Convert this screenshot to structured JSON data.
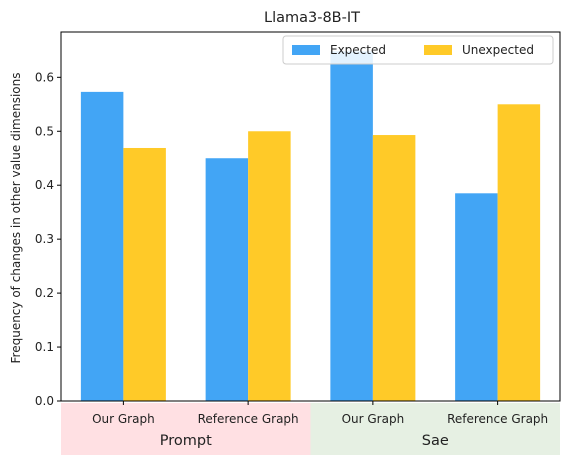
{
  "chart_data": {
    "type": "bar",
    "title": "Llama3-8B-IT",
    "xlabel": "",
    "ylabel": "Frequency of changes in other value dimensions",
    "ylim": [
      0,
      0.684
    ],
    "yticks": [
      0.0,
      0.1,
      0.2,
      0.3,
      0.4,
      0.5,
      0.6
    ],
    "ytick_labels": [
      "0.0",
      "0.1",
      "0.2",
      "0.3",
      "0.4",
      "0.5",
      "0.6"
    ],
    "categories": [
      "Our Graph",
      "Reference Graph",
      "Our Graph",
      "Reference Graph"
    ],
    "groups": [
      {
        "label": "Prompt",
        "categories": [
          0,
          1
        ],
        "color": "#ffe0e3"
      },
      {
        "label": "Sae",
        "categories": [
          2,
          3
        ],
        "color": "#e6f0e3"
      }
    ],
    "series": [
      {
        "name": "Expected",
        "color": "#42a5f5",
        "values": [
          0.573,
          0.45,
          0.648,
          0.385
        ]
      },
      {
        "name": "Unexpected",
        "color": "#ffca28",
        "values": [
          0.469,
          0.5,
          0.493,
          0.55
        ]
      }
    ],
    "legend": {
      "placement": "top-right",
      "entries": [
        "Expected",
        "Unexpected"
      ]
    },
    "grid": false
  }
}
